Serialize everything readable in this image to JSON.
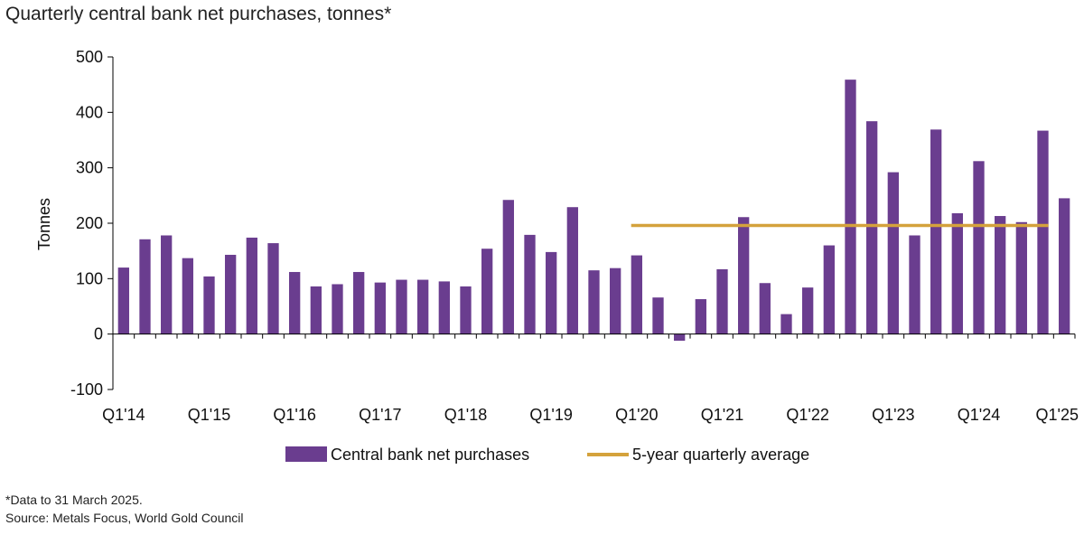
{
  "title": "Quarterly central bank net purchases, tonnes*",
  "footnote": "*Data to 31 March 2025.",
  "source": "Source: Metals Focus, World Gold Council",
  "colors": {
    "bar": "#6a3d8f",
    "average": "#d4a23c",
    "axis": "#000000"
  },
  "chart_data": {
    "type": "bar",
    "ylabel": "Tonnes",
    "ylim": [
      -100,
      500
    ],
    "yticks": [
      "500",
      "400",
      "300",
      "200",
      "100",
      "0",
      "-100"
    ],
    "ytick_values": [
      500,
      400,
      300,
      200,
      100,
      0,
      -100
    ],
    "grid": false,
    "legend_position": "bottom-center",
    "x_tick_labels": [
      {
        "label": "Q1'14",
        "index": 0
      },
      {
        "label": "Q1'15",
        "index": 4
      },
      {
        "label": "Q1'16",
        "index": 8
      },
      {
        "label": "Q1'17",
        "index": 12
      },
      {
        "label": "Q1'18",
        "index": 16
      },
      {
        "label": "Q1'19",
        "index": 20
      },
      {
        "label": "Q1'20",
        "index": 24
      },
      {
        "label": "Q1'21",
        "index": 28
      },
      {
        "label": "Q1'22",
        "index": 32
      },
      {
        "label": "Q1'23",
        "index": 36
      },
      {
        "label": "Q1'24",
        "index": 40
      },
      {
        "label": "Q1'25",
        "index": 44
      }
    ],
    "categories": [
      "Q1'14",
      "Q2'14",
      "Q3'14",
      "Q4'14",
      "Q1'15",
      "Q2'15",
      "Q3'15",
      "Q4'15",
      "Q1'16",
      "Q2'16",
      "Q3'16",
      "Q4'16",
      "Q1'17",
      "Q2'17",
      "Q3'17",
      "Q4'17",
      "Q1'18",
      "Q2'18",
      "Q3'18",
      "Q4'18",
      "Q1'19",
      "Q2'19",
      "Q3'19",
      "Q4'19",
      "Q1'20",
      "Q2'20",
      "Q3'20",
      "Q4'20",
      "Q1'21",
      "Q2'21",
      "Q3'21",
      "Q4'21",
      "Q1'22",
      "Q2'22",
      "Q3'22",
      "Q4'22",
      "Q1'23",
      "Q2'23",
      "Q3'23",
      "Q4'23",
      "Q1'24",
      "Q2'24",
      "Q3'24",
      "Q4'24",
      "Q1'25"
    ],
    "series": [
      {
        "name": "Central bank net purchases",
        "type": "bar",
        "values": [
          120,
          171,
          178,
          137,
          104,
          143,
          174,
          164,
          112,
          86,
          90,
          112,
          93,
          98,
          98,
          95,
          86,
          154,
          242,
          179,
          148,
          229,
          115,
          119,
          142,
          66,
          -12,
          63,
          117,
          211,
          92,
          36,
          84,
          160,
          459,
          384,
          292,
          178,
          369,
          218,
          312,
          213,
          202,
          367,
          245
        ]
      },
      {
        "name": "5-year quarterly average",
        "type": "line",
        "value": 196,
        "from_index": 24,
        "to_index": 43
      }
    ]
  }
}
